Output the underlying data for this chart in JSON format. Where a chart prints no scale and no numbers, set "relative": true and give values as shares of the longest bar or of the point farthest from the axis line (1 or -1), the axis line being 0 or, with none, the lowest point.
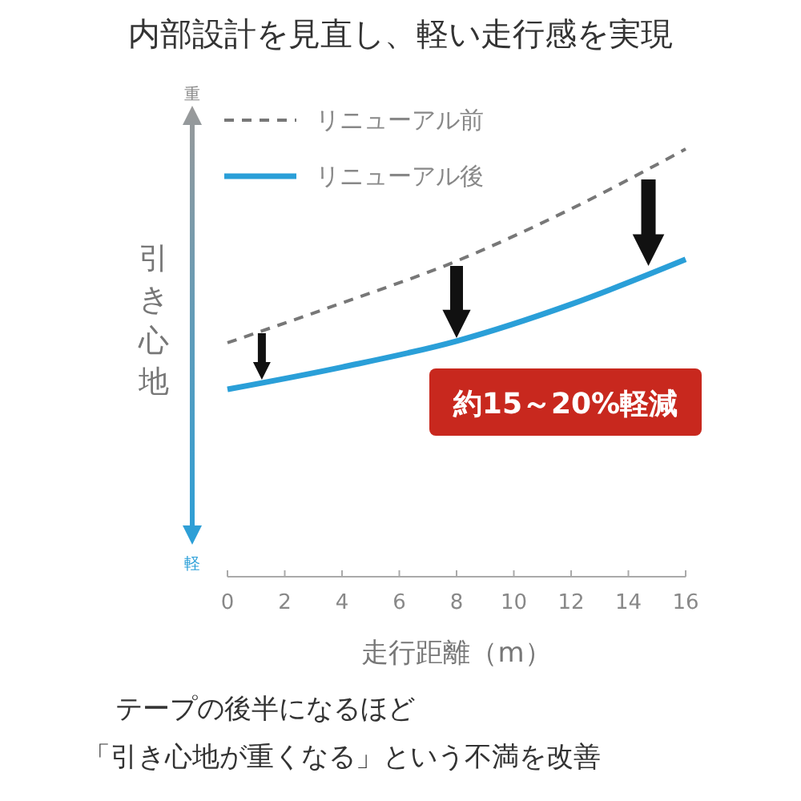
{
  "chart_data": {
    "type": "line",
    "title": "内部設計を見直し、軽い走行感を実現",
    "xlabel": "走行距離（m）",
    "ylabel": "引き心地",
    "relative": true,
    "x": [
      0,
      4,
      8,
      12,
      16
    ],
    "xlim": [
      0,
      16
    ],
    "xticks": [
      0,
      2,
      4,
      6,
      8,
      10,
      12,
      14,
      16
    ],
    "series": [
      {
        "name": "リニューアル前",
        "color": "#777777",
        "line_style": "dashed",
        "values": [
          0.547,
          0.64,
          0.738,
          0.86,
          1
        ]
      },
      {
        "name": "リニューアル後",
        "color": "#2a9fd8",
        "line_style": "solid",
        "values": [
          0.438,
          0.49,
          0.551,
          0.637,
          0.742
        ]
      }
    ],
    "legend": "top left",
    "marker": "none",
    "grid": false,
    "annotations": [
      "約15～20%軽減",
      "重",
      "軽",
      "テープの後半になるほど",
      "「引き心地が重くなる」という不満を改善"
    ]
  }
}
